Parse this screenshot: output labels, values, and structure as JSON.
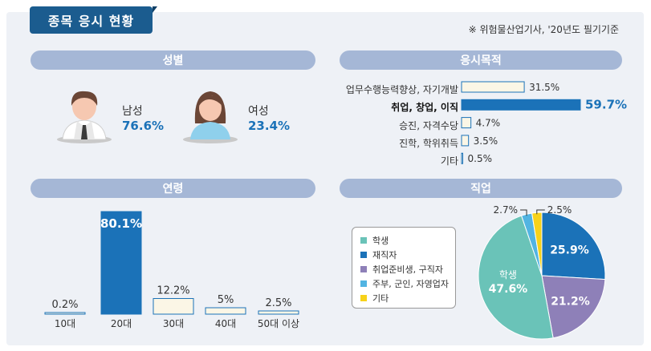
{
  "header": {
    "title": "종목 응시 현황",
    "source": "※ 위험물산업기사, '20년도 필기기준"
  },
  "gender": {
    "heading": "성별",
    "male": {
      "label": "남성",
      "value": "76.6%"
    },
    "female": {
      "label": "여성",
      "value": "23.4%"
    }
  },
  "purpose": {
    "heading": "응시목적",
    "items": [
      {
        "label": "업무수행능력향상, 자기개발",
        "value": 31.5,
        "text": "31.5%"
      },
      {
        "label": "취업, 창업, 이직",
        "value": 59.7,
        "text": "59.7%"
      },
      {
        "label": "승진, 자격수당",
        "value": 4.7,
        "text": "4.7%"
      },
      {
        "label": "진학, 학위취득",
        "value": 3.5,
        "text": "3.5%"
      },
      {
        "label": "기타",
        "value": 0.5,
        "text": "0.5%"
      }
    ]
  },
  "age": {
    "heading": "연령",
    "categories": [
      "10대",
      "20대",
      "30대",
      "40대",
      "50대 이상"
    ],
    "values": [
      0.2,
      80.1,
      12.2,
      5,
      2.5
    ],
    "labels": [
      "0.2%",
      "80.1%",
      "12.2%",
      "5%",
      "2.5%"
    ]
  },
  "job": {
    "heading": "직업",
    "legend": [
      "학생",
      "재직자",
      "취업준비생, 구직자",
      "주부, 군인, 자영업자",
      "기타"
    ]
  },
  "colors": {
    "title_bg": "#1b5c8f",
    "accent_blue": "#1b72b8",
    "light_bar": "#fbf6e6",
    "student": "#6ac3b8",
    "employed": "#1b72b8",
    "jobseeker": "#8e80b8",
    "homemaker": "#52b4e2",
    "other": "#f7d21a"
  },
  "icons": {
    "male": "man-avatar-icon",
    "female": "woman-avatar-icon"
  },
  "chart_data": [
    {
      "type": "bar",
      "orientation": "horizontal",
      "title": "응시목적",
      "categories": [
        "업무수행능력향상, 자기개발",
        "취업, 창업, 이직",
        "승진, 자격수당",
        "진학, 학위취득",
        "기타"
      ],
      "values": [
        31.5,
        59.7,
        4.7,
        3.5,
        0.5
      ]
    },
    {
      "type": "bar",
      "title": "연령",
      "categories": [
        "10대",
        "20대",
        "30대",
        "40대",
        "50대 이상"
      ],
      "values": [
        0.2,
        80.1,
        12.2,
        5,
        2.5
      ]
    },
    {
      "type": "pie",
      "title": "직업",
      "categories": [
        "학생",
        "재직자",
        "취업준비생, 구직자",
        "주부, 군인, 자영업자",
        "기타"
      ],
      "values": [
        47.6,
        25.9,
        21.2,
        2.7,
        2.5
      ],
      "labels": [
        "47.6%",
        "25.9%",
        "21.2%",
        "2.7%",
        "2.5%"
      ],
      "legend": "left"
    }
  ]
}
